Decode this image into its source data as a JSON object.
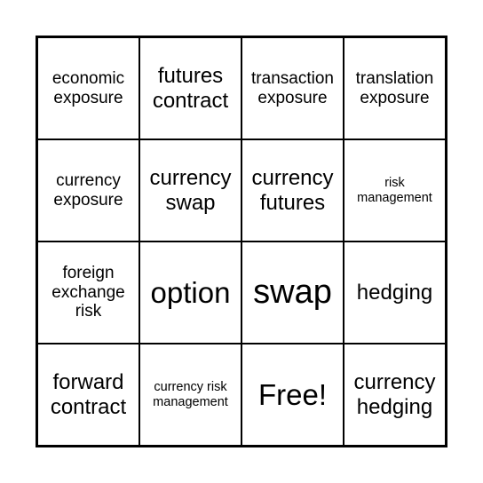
{
  "grid": {
    "type": "table",
    "rows": 4,
    "cols": 4,
    "border_color": "#000000",
    "background_color": "#ffffff",
    "text_color": "#000000",
    "cells": [
      {
        "text": "economic exposure",
        "size": "med"
      },
      {
        "text": "futures contract",
        "size": "large"
      },
      {
        "text": "transaction exposure",
        "size": "med"
      },
      {
        "text": "translation exposure",
        "size": "med"
      },
      {
        "text": "currency exposure",
        "size": "med"
      },
      {
        "text": "currency swap",
        "size": "large"
      },
      {
        "text": "currency futures",
        "size": "large"
      },
      {
        "text": "risk management",
        "size": "small"
      },
      {
        "text": "foreign exchange risk",
        "size": "med"
      },
      {
        "text": "option",
        "size": "xlarge"
      },
      {
        "text": "swap",
        "size": "huge"
      },
      {
        "text": "hedging",
        "size": "large"
      },
      {
        "text": "forward contract",
        "size": "large"
      },
      {
        "text": "currency risk management",
        "size": "small"
      },
      {
        "text": "Free!",
        "size": "xlarge"
      },
      {
        "text": "currency hedging",
        "size": "large"
      }
    ]
  }
}
